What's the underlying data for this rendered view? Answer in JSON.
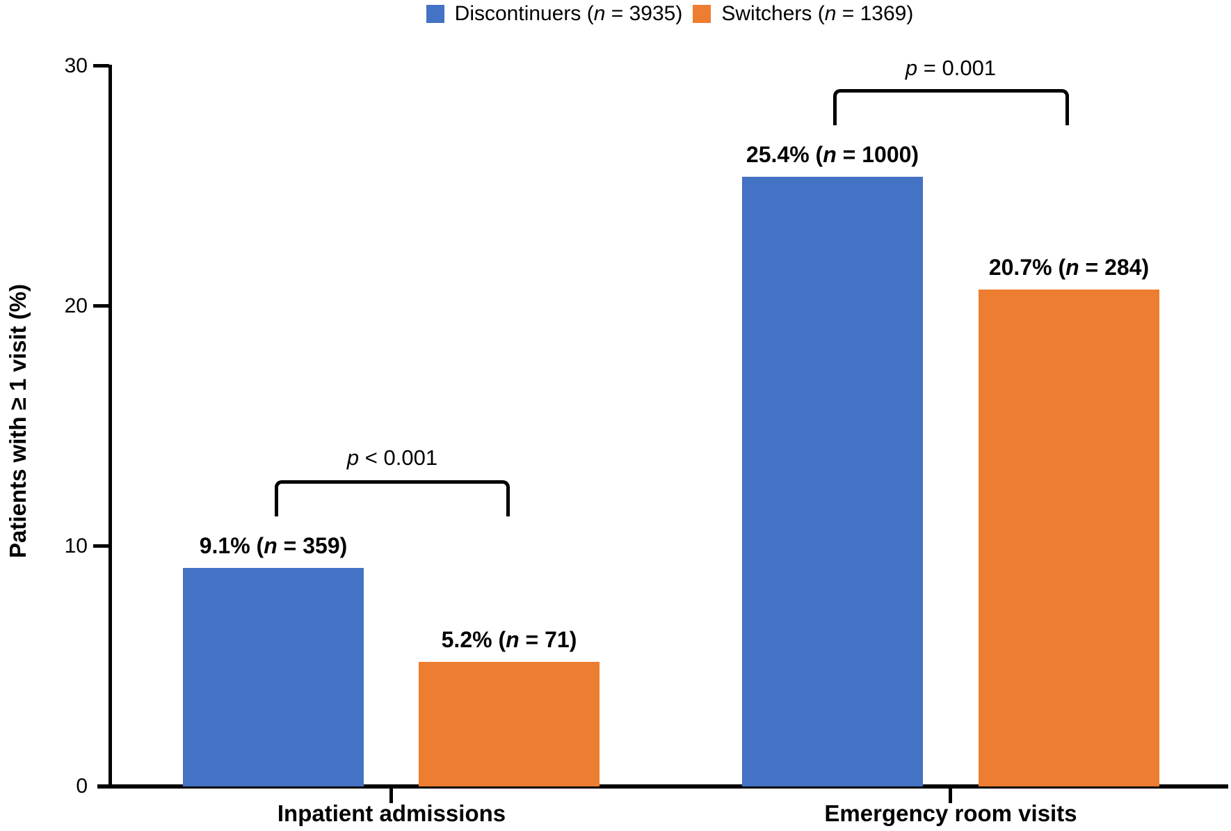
{
  "chart_data": {
    "type": "bar",
    "title": "",
    "xlabel": "",
    "ylabel": "Patients with ≥ 1 visit (%)",
    "ylim": [
      0,
      30
    ],
    "yticks": [
      0,
      10,
      20,
      30
    ],
    "grid": false,
    "legend_position": "top",
    "categories": [
      "Inpatient admissions",
      "Emergency room visits"
    ],
    "series": [
      {
        "name": "Discontinuers",
        "n": 3935,
        "color": "#4472C4",
        "values": [
          9.1,
          25.4
        ],
        "counts": [
          359,
          1000
        ]
      },
      {
        "name": "Switchers",
        "n": 1369,
        "color": "#ED7D31",
        "values": [
          5.2,
          20.7
        ],
        "counts": [
          71,
          284
        ]
      }
    ],
    "bar_value_labels": [
      [
        "9.1% (n = 359)",
        "25.4% (n = 1000)"
      ],
      [
        "5.2% (n = 71)",
        "20.7% (n = 284)"
      ]
    ],
    "significance": [
      {
        "category": "Inpatient admissions",
        "p_label": "p < 0.001"
      },
      {
        "category": "Emergency room visits",
        "p_label": "p = 0.001"
      }
    ]
  },
  "legend": {
    "items": [
      {
        "label_prefix": "Discontinuers (",
        "n_var": "n",
        "label_suffix": " = 3935)",
        "color": "#4472C4"
      },
      {
        "label_prefix": "Switchers (",
        "n_var": "n",
        "label_suffix": " = 1369)",
        "color": "#ED7D31"
      }
    ]
  },
  "axes": {
    "y_title": "Patients with ≥ 1 visit (%)",
    "y_tick_labels": {
      "t0": "0",
      "t10": "10",
      "t20": "20",
      "t30": "30"
    },
    "x_categories": [
      "Inpatient admissions",
      "Emergency room visits"
    ]
  },
  "annotations": [
    {
      "p_prefix": "p",
      "p_rest": " < 0.001"
    },
    {
      "p_prefix": "p",
      "p_rest": " = 0.001"
    }
  ]
}
